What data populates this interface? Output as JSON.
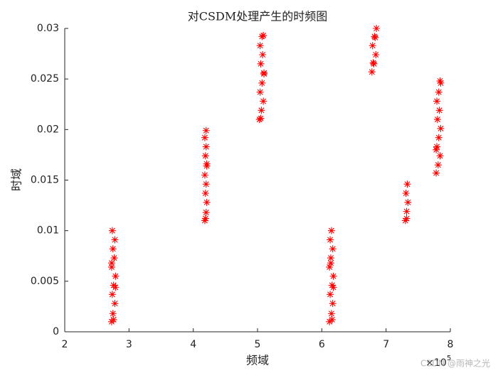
{
  "chart_data": {
    "type": "scatter",
    "title": "对CSDM处理产生的时频图",
    "x_label": "频域",
    "y_label": "时域",
    "x_multiplier": "×10",
    "x_multiplier_exponent": "5",
    "watermark": "CSDN @雨神之光",
    "color": "#ff0000",
    "x": [
      2.73,
      2.75,
      2.78,
      2.74,
      2.76,
      2.79,
      2.73,
      2.77,
      2.75,
      2.78,
      2.74,
      2.76,
      2.79,
      2.73,
      4.18,
      4.2,
      4.21,
      4.19,
      4.2,
      4.18,
      4.21,
      4.19,
      4.2,
      4.18,
      4.2,
      4.19,
      4.21,
      5.03,
      5.06,
      5.09,
      5.04,
      5.07,
      5.1,
      5.05,
      5.08,
      5.04,
      5.07,
      5.09,
      5.05,
      5.1,
      6.12,
      6.15,
      6.17,
      6.13,
      6.16,
      6.18,
      6.12,
      6.14,
      6.17,
      6.13,
      6.15,
      6.16,
      6.18,
      6.14,
      6.78,
      6.81,
      6.84,
      6.79,
      6.82,
      6.85,
      6.8,
      6.83,
      7.3,
      7.32,
      7.34,
      7.31,
      7.33,
      7.32,
      7.78,
      7.81,
      7.84,
      7.79,
      7.82,
      7.85,
      7.8,
      7.83,
      7.79,
      7.82,
      7.85,
      7.84,
      7.78
    ],
    "values": [
      0.001,
      0.0018,
      0.0028,
      0.0037,
      0.0046,
      0.0055,
      0.0064,
      0.0073,
      0.0082,
      0.0091,
      0.01,
      0.0012,
      0.0044,
      0.0068,
      0.011,
      0.0118,
      0.0128,
      0.0137,
      0.0146,
      0.0155,
      0.0164,
      0.0174,
      0.0183,
      0.0192,
      0.0199,
      0.0112,
      0.0166,
      0.021,
      0.0219,
      0.0228,
      0.0237,
      0.0246,
      0.0256,
      0.0265,
      0.0274,
      0.0283,
      0.0292,
      0.0293,
      0.0211,
      0.0255,
      0.001,
      0.0018,
      0.0028,
      0.0037,
      0.0046,
      0.0055,
      0.0064,
      0.0073,
      0.0082,
      0.0091,
      0.01,
      0.0012,
      0.0044,
      0.0068,
      0.0257,
      0.0265,
      0.0274,
      0.0283,
      0.0292,
      0.03,
      0.0266,
      0.0291,
      0.011,
      0.0119,
      0.0128,
      0.0137,
      0.0146,
      0.0112,
      0.0157,
      0.0165,
      0.0174,
      0.0183,
      0.0192,
      0.0201,
      0.021,
      0.0219,
      0.0228,
      0.0237,
      0.0246,
      0.0248,
      0.018
    ],
    "xlim": [
      2,
      8
    ],
    "xticks": [
      2,
      3,
      4,
      5,
      6,
      7,
      8
    ],
    "ylim": [
      0,
      0.03
    ],
    "yticks": [
      0,
      0.005,
      0.01,
      0.015,
      0.02,
      0.025,
      0.03
    ]
  }
}
